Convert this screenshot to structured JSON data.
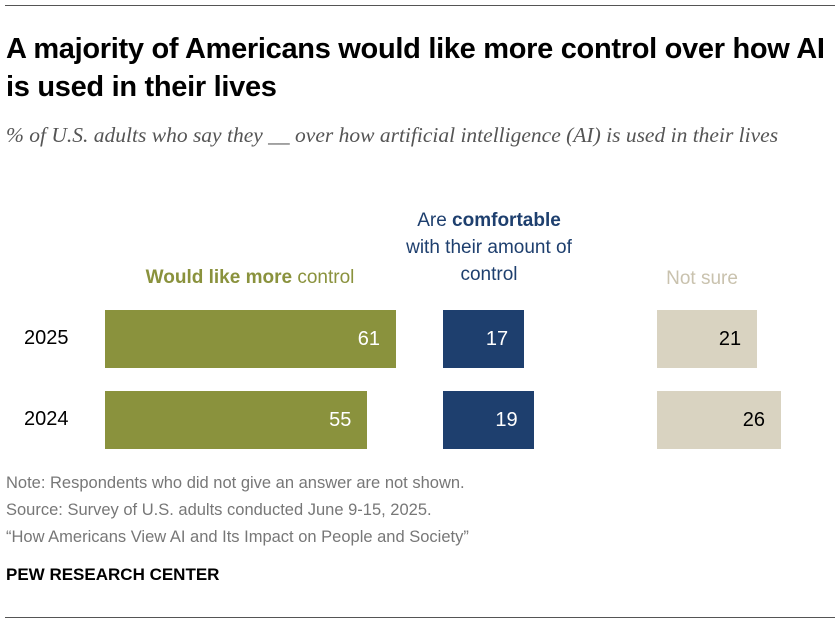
{
  "title": "A majority of Americans would like more control over how AI is used in their lives",
  "subtitle": "% of U.S. adults who say they __ over how artificial intelligence (AI) is used in their lives",
  "chart_data": {
    "type": "bar",
    "orientation": "horizontal",
    "categories": [
      "2025",
      "2024"
    ],
    "series": [
      {
        "name": "Would like more control",
        "name_bold": "Would like more",
        "name_rest": " control",
        "color": "#8A923D",
        "label_color": "#FFFFFF",
        "values": [
          61,
          55
        ]
      },
      {
        "name": "Are comfortable with their amount of control",
        "name_pre": "Are ",
        "name_bold": "comfortable",
        "name_rest": "with their amount of control",
        "color": "#1E3F6E",
        "label_color": "#FFFFFF",
        "values": [
          17,
          19
        ]
      },
      {
        "name": "Not sure",
        "color": "#D9D3C1",
        "header_color": "#C9C2AE",
        "label_color": "#000000",
        "values": [
          21,
          26
        ]
      }
    ],
    "grid": false,
    "legend": "column headers above bars"
  },
  "notes": {
    "note": "Note: Respondents who did not give an answer are not shown.",
    "source": "Source: Survey of U.S. adults conducted June 9-15, 2025.",
    "report": "“How Americans View AI and Its Impact on People and Society”"
  },
  "brand": "PEW RESEARCH CENTER"
}
